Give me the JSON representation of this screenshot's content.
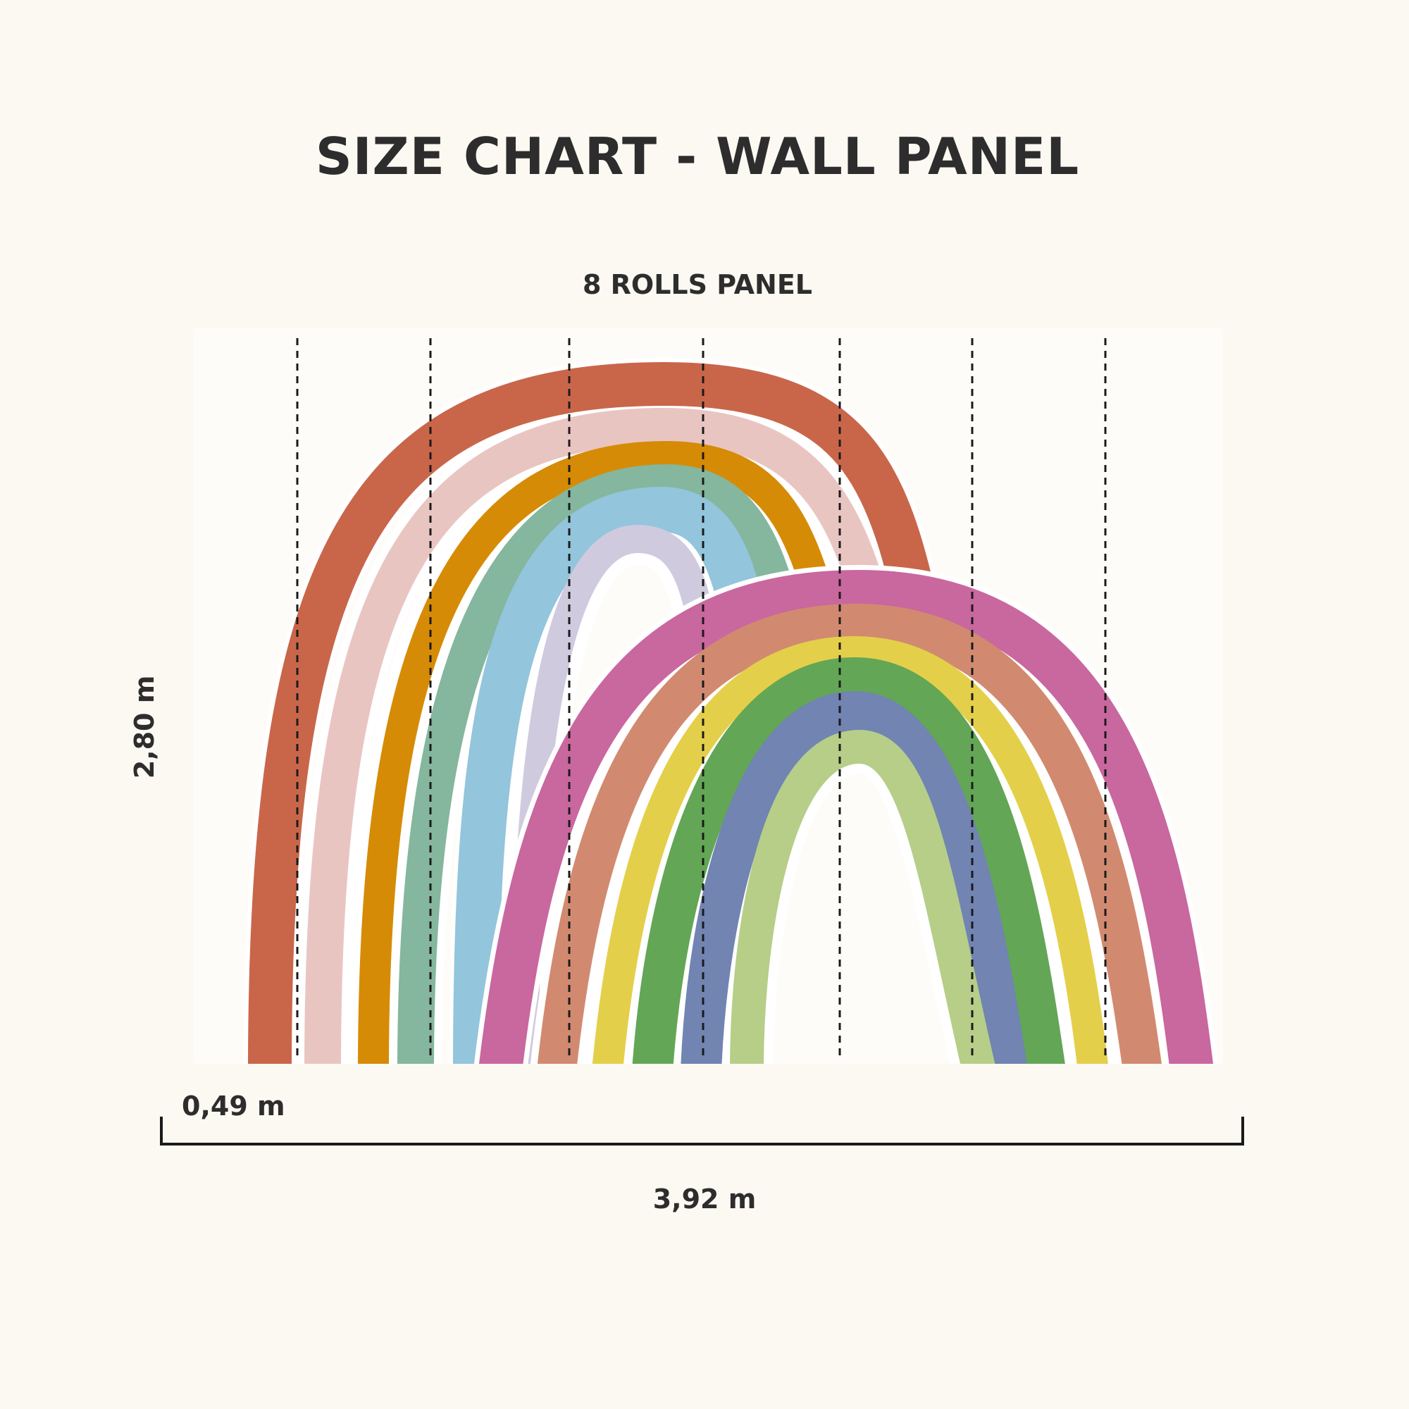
{
  "title": "SIZE CHART - WALL PANEL",
  "panel_label": "8 ROLLS PANEL",
  "height_label": "2,80 m",
  "roll_width_label": "0,49 m",
  "total_width_label": "3,92 m",
  "roll_count": 8,
  "colors": {
    "background": "#fcf9f2",
    "panel": "#fefcf8",
    "text": "#2d2d2d",
    "back_rainbow": [
      "#c9664a",
      "#e9c5c2",
      "#d68b06",
      "#85b69e",
      "#93c5dc",
      "#d0cadf"
    ],
    "front_rainbow": [
      "#c9679f",
      "#d18a70",
      "#e4cf4a",
      "#63a656",
      "#7184b2",
      "#b6ce88"
    ]
  }
}
